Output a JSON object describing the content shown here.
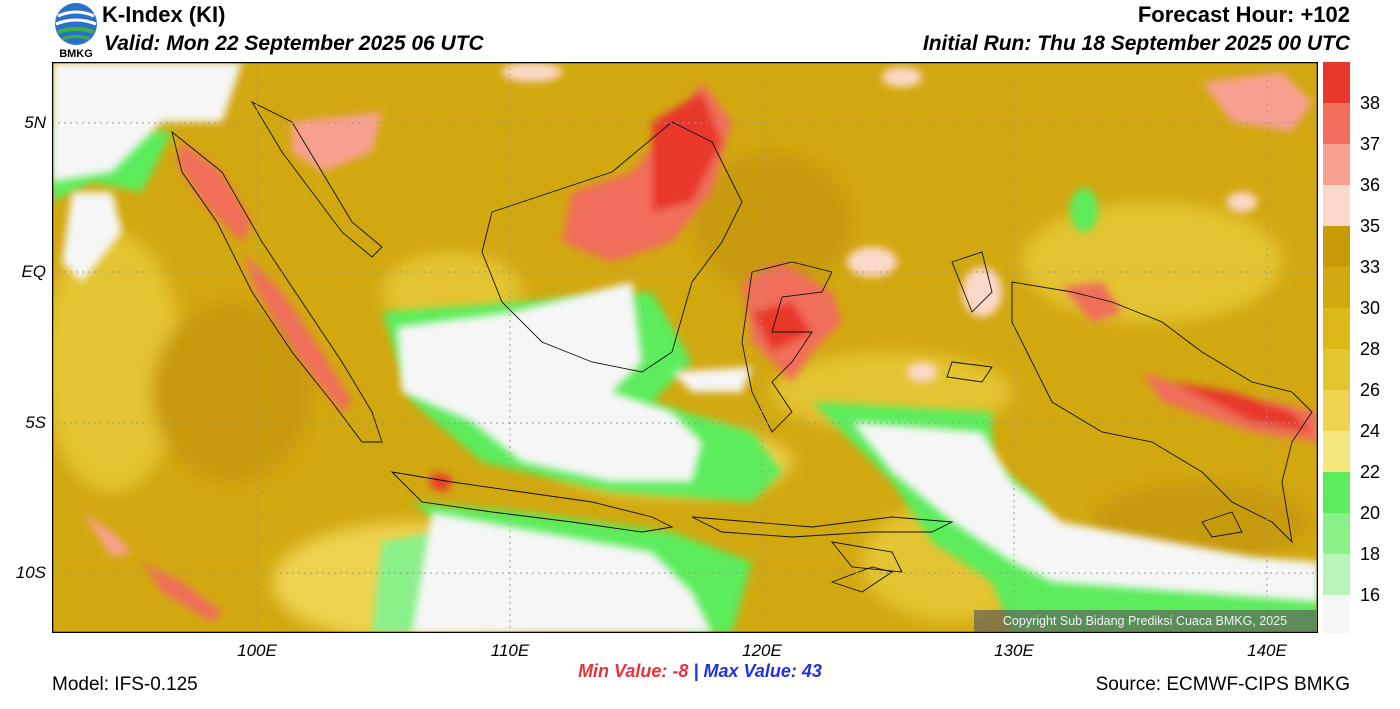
{
  "header": {
    "title": "K-Index (KI)",
    "valid": "Valid: Mon 22 September 2025 06 UTC",
    "forecast_hour": "Forecast Hour: +102",
    "initial_run": "Initial Run: Thu 18 September 2025 00 UTC",
    "logo_text": "BMKG"
  },
  "axes": {
    "lat_labels": [
      "5N",
      "EQ",
      "5S",
      "10S"
    ],
    "lon_labels": [
      "100E",
      "110E",
      "120E",
      "130E",
      "140E"
    ]
  },
  "colorbar": {
    "labels": [
      "38",
      "37",
      "36",
      "35",
      "33",
      "30",
      "28",
      "26",
      "24",
      "22",
      "20",
      "18",
      "16"
    ],
    "colors": [
      "#e8372c",
      "#f06e5a",
      "#f8a090",
      "#fcd8c8",
      "#c89a08",
      "#d2a810",
      "#dcb818",
      "#e4c430",
      "#eed250",
      "#f6e67e",
      "#5cec5c",
      "#8af08a",
      "#b8f5b8",
      "#f6f6f6"
    ]
  },
  "stats": {
    "min_label": "Min Value:",
    "min_value": "-8",
    "separator": "|",
    "max_label": "Max Value:",
    "max_value": "43"
  },
  "footer": {
    "model": "Model: IFS-0.125",
    "source": "Source: ECMWF-CIPS BMKG",
    "copyright": "Copyright Sub Bidang Prediksi Cuaca BMKG, 2025"
  }
}
